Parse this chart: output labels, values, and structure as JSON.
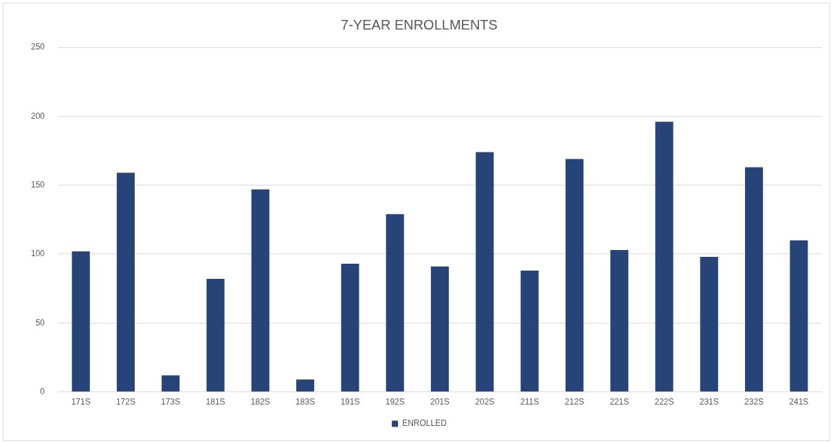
{
  "chart_data": {
    "type": "bar",
    "title": "7-YEAR ENROLLMENTS",
    "categories": [
      "171S",
      "172S",
      "173S",
      "181S",
      "182S",
      "183S",
      "191S",
      "192S",
      "201S",
      "202S",
      "211S",
      "212S",
      "221S",
      "222S",
      "231S",
      "232S",
      "241S"
    ],
    "series": [
      {
        "name": "ENROLLED",
        "color": "#264478",
        "values": [
          102,
          159,
          12,
          82,
          147,
          9,
          93,
          129,
          91,
          174,
          88,
          169,
          103,
          196,
          98,
          163,
          110
        ]
      }
    ],
    "ylim": [
      0,
      250
    ],
    "yticks": [
      0,
      50,
      100,
      150,
      200,
      250
    ],
    "grid": "y",
    "legend": "bottom"
  }
}
